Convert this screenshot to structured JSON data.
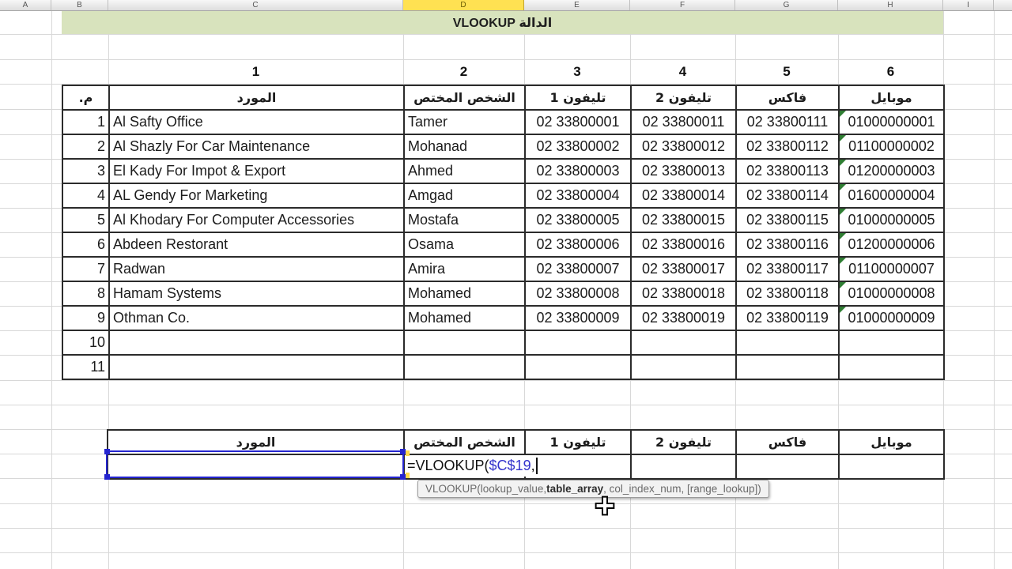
{
  "sheet": {
    "column_letters": [
      "A",
      "B",
      "C",
      "D",
      "E",
      "F",
      "G",
      "H",
      "I"
    ],
    "selected_column": "D",
    "banner_title": "الدالة VLOOKUP",
    "column_index_labels": [
      "1",
      "2",
      "3",
      "4",
      "5",
      "6"
    ]
  },
  "supplier_table": {
    "headers": [
      "م.",
      "المورد",
      "الشخص المختص",
      "تليفون 1",
      "تليفون 2",
      "فاكس",
      "موبايل"
    ],
    "rows": [
      [
        "1",
        "Al Safty Office",
        "Tamer",
        "02 33800001",
        "02 33800011",
        "02 33800111",
        "01000000001"
      ],
      [
        "2",
        "Al Shazly For Car Maintenance",
        "Mohanad",
        "02 33800002",
        "02 33800012",
        "02 33800112",
        "01100000002"
      ],
      [
        "3",
        "El Kady For Impot & Export",
        "Ahmed",
        "02 33800003",
        "02 33800013",
        "02 33800113",
        "01200000003"
      ],
      [
        "4",
        "AL Gendy For Marketing",
        "Amgad",
        "02 33800004",
        "02 33800014",
        "02 33800114",
        "01600000004"
      ],
      [
        "5",
        "Al Khodary For Computer Accessories",
        "Mostafa",
        "02 33800005",
        "02 33800015",
        "02 33800115",
        "01000000005"
      ],
      [
        "6",
        "Abdeen Restorant",
        "Osama",
        "02 33800006",
        "02 33800016",
        "02 33800116",
        "01200000006"
      ],
      [
        "7",
        "Radwan",
        "Amira",
        "02 33800007",
        "02 33800017",
        "02 33800117",
        "01100000007"
      ],
      [
        "8",
        "Hamam Systems",
        "Mohamed",
        "02 33800008",
        "02 33800018",
        "02 33800118",
        "01000000008"
      ],
      [
        "9",
        "Othman Co.",
        "Mohamed",
        "02 33800009",
        "02 33800019",
        "02 33800119",
        "01000000009"
      ],
      [
        "10",
        "",
        "",
        "",
        "",
        "",
        ""
      ],
      [
        "11",
        "",
        "",
        "",
        "",
        "",
        ""
      ]
    ]
  },
  "lookup_table": {
    "headers": [
      "المورد",
      "الشخص المختص",
      "تليفون 1",
      "تليفون 2",
      "فاكس",
      "موبايل"
    ],
    "formula": {
      "prefix": "=VLOOKUP(",
      "reference": "$C$19",
      "suffix": ","
    }
  },
  "tooltip": {
    "function_name": "VLOOKUP(",
    "arg_before": "lookup_value, ",
    "arg_current": "table_array",
    "arg_after": ", col_index_num, [range_lookup])"
  },
  "colors": {
    "banner_bg": "#d8e3bd",
    "selected_column_bg": "#ffe152",
    "reference_text": "#3333cc",
    "selection_border": "#2424cf",
    "error_triangle": "#2f7d33"
  }
}
